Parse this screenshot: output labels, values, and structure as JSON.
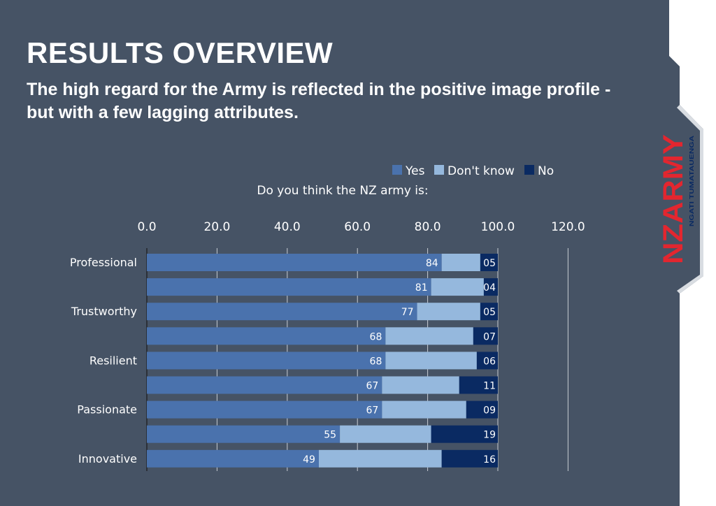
{
  "slide": {
    "title": "RESULTS OVERVIEW",
    "subtitle": "The high regard for the Army is reflected in the positive image profile - but with a few lagging attributes."
  },
  "logo": {
    "text": "NZARMY",
    "tagline": "NGATI TUMATAUENGA",
    "color": "#e3262f"
  },
  "colors": {
    "background": "#465365",
    "panel": "#ffffff",
    "yes": "#4a72ad",
    "dont_know": "#95b8dd",
    "no": "#0a2a62",
    "text": "#ffffff",
    "grid": "#c8cdd4"
  },
  "chart_data": {
    "type": "bar",
    "orientation": "horizontal",
    "stacked": true,
    "title": "Do you think the NZ army is:",
    "categories": [
      "Professional",
      "",
      "Trustworthy",
      "",
      "Resilient",
      "",
      "Passionate",
      "",
      "Innovative"
    ],
    "series": [
      {
        "name": "Yes",
        "values": [
          84,
          81,
          77,
          68,
          68,
          67,
          67,
          55,
          49
        ],
        "labels": [
          "84",
          "81",
          "77",
          "68",
          "68",
          "67",
          "67",
          "55",
          "49"
        ]
      },
      {
        "name": "Don't know",
        "values": [
          11,
          15,
          18,
          25,
          26,
          22,
          24,
          26,
          35
        ]
      },
      {
        "name": "No",
        "values": [
          5,
          4,
          5,
          7,
          6,
          11,
          9,
          19,
          16
        ],
        "labels": [
          "05",
          "04",
          "05",
          "07",
          "06",
          "11",
          "09",
          "19",
          "16"
        ]
      }
    ],
    "xlim": [
      0,
      120
    ],
    "xticks": [
      0,
      20,
      40,
      60,
      80,
      100,
      120
    ],
    "xtick_labels": [
      "0.0",
      "20.0",
      "40.0",
      "60.0",
      "80.0",
      "100.0",
      "120.0"
    ],
    "axis_position": "top",
    "legend": "top-right",
    "grid": true
  }
}
